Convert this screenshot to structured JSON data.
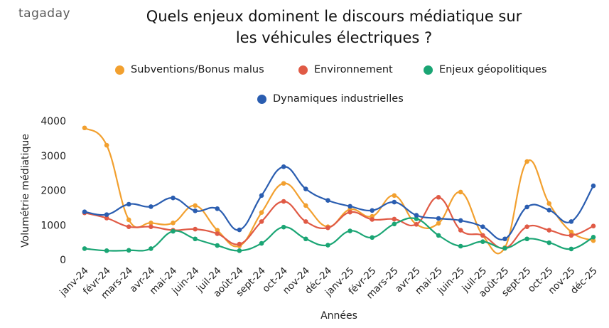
{
  "brand": {
    "logo_text": "tagaday"
  },
  "chart_data": {
    "type": "line",
    "title": "Quels enjeux dominent le discours médiatique sur les véhicules électriques ?",
    "title_lines": [
      "Quels enjeux dominent le discours médiatique sur",
      "les véhicules électriques ?"
    ],
    "xlabel": "Années",
    "ylabel": "Volumétrie médiatique",
    "ylim": [
      0,
      4000
    ],
    "yticks": [
      0,
      1000,
      2000,
      3000,
      4000
    ],
    "grid": false,
    "legend_position": "top",
    "categories": [
      "janv-24",
      "févr-24",
      "mars-24",
      "avr-24",
      "mai-24",
      "juin-24",
      "juil-24",
      "août-24",
      "sept-24",
      "oct-24",
      "nov-24",
      "déc-24",
      "janv-25",
      "févr-25",
      "mars-25",
      "avr-25",
      "mai-25",
      "juin-25",
      "juil-25",
      "août-25",
      "sept-25",
      "oct-25",
      "nov-25",
      "déc-25"
    ],
    "series": [
      {
        "name": "Subventions/Bonus malus",
        "color": "#f2a02f",
        "values": [
          3800,
          3300,
          1150,
          1060,
          1060,
          1560,
          850,
          400,
          1360,
          2200,
          1560,
          950,
          1450,
          1250,
          1850,
          1020,
          1050,
          1950,
          700,
          350,
          2830,
          1620,
          800,
          550
        ]
      },
      {
        "name": "Environnement",
        "color": "#e05a45",
        "values": [
          1350,
          1200,
          950,
          950,
          850,
          880,
          750,
          450,
          1100,
          1680,
          1100,
          920,
          1370,
          1160,
          1170,
          1020,
          1800,
          850,
          700,
          330,
          950,
          850,
          700,
          970
        ]
      },
      {
        "name": "Enjeux géopolitiques",
        "color": "#1aa574",
        "values": [
          320,
          260,
          270,
          320,
          820,
          600,
          410,
          260,
          470,
          940,
          600,
          420,
          830,
          640,
          1030,
          1180,
          700,
          390,
          520,
          330,
          600,
          490,
          310,
          650
        ]
      },
      {
        "name": "Dynamiques industrielles",
        "color": "#2a5db0",
        "values": [
          1380,
          1300,
          1600,
          1530,
          1780,
          1410,
          1470,
          860,
          1850,
          2680,
          2040,
          1710,
          1540,
          1420,
          1660,
          1280,
          1190,
          1130,
          950,
          600,
          1520,
          1430,
          1100,
          2130
        ]
      }
    ]
  }
}
